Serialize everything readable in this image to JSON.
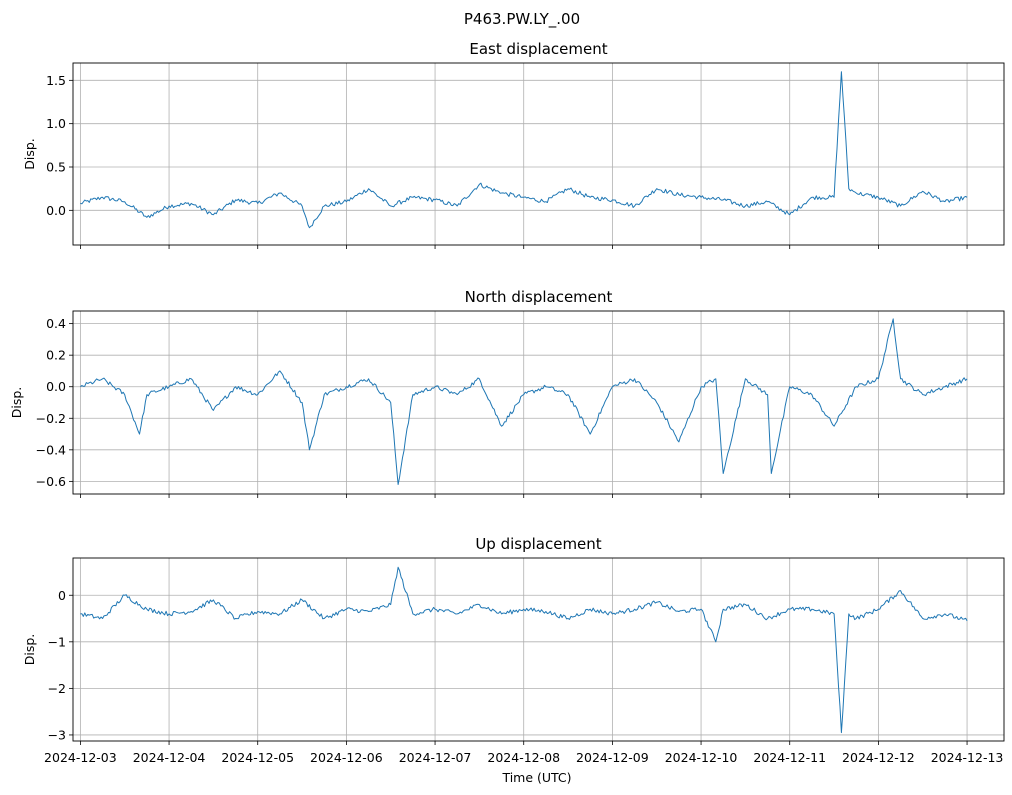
{
  "figure": {
    "suptitle": "P463.PW.LY_.00",
    "xlabel": "Time (UTC)",
    "line_color": "#1f77b4",
    "grid_color": "#b0b0b0"
  },
  "chart_data": [
    {
      "type": "line",
      "title": "East displacement",
      "ylabel": "Disp.",
      "xlabel": "",
      "xlim": [
        "2024-12-02T22:00",
        "2024-12-13T10:00"
      ],
      "ylim": [
        -0.4,
        1.7
      ],
      "yticks": [
        0.0,
        0.5,
        1.0,
        1.5
      ],
      "ytick_labels": [
        "0.0",
        "0.5",
        "1.0",
        "1.5"
      ],
      "grid": true,
      "show_xticklabels": false,
      "series": [
        {
          "x": [
            "2024-12-03T00:00",
            "2024-12-03T06:00",
            "2024-12-03T12:00",
            "2024-12-03T18:00",
            "2024-12-04T00:00",
            "2024-12-04T06:00",
            "2024-12-04T12:00",
            "2024-12-04T18:00",
            "2024-12-05T00:00",
            "2024-12-05T06:00",
            "2024-12-05T12:00",
            "2024-12-05T14:00",
            "2024-12-05T18:00",
            "2024-12-06T00:00",
            "2024-12-06T06:00",
            "2024-12-06T12:00",
            "2024-12-06T18:00",
            "2024-12-07T00:00",
            "2024-12-07T06:00",
            "2024-12-07T12:00",
            "2024-12-07T18:00",
            "2024-12-08T00:00",
            "2024-12-08T06:00",
            "2024-12-08T12:00",
            "2024-12-08T18:00",
            "2024-12-09T00:00",
            "2024-12-09T06:00",
            "2024-12-09T12:00",
            "2024-12-09T18:00",
            "2024-12-10T00:00",
            "2024-12-10T06:00",
            "2024-12-10T12:00",
            "2024-12-10T18:00",
            "2024-12-11T00:00",
            "2024-12-11T06:00",
            "2024-12-11T12:00",
            "2024-12-11T14:00",
            "2024-12-11T16:00",
            "2024-12-11T18:00",
            "2024-12-12T00:00",
            "2024-12-12T06:00",
            "2024-12-12T12:00",
            "2024-12-12T18:00",
            "2024-12-13T00:00"
          ],
          "y": [
            0.08,
            0.15,
            0.1,
            -0.08,
            0.05,
            0.08,
            -0.05,
            0.12,
            0.08,
            0.2,
            0.05,
            -0.2,
            0.05,
            0.1,
            0.25,
            0.05,
            0.15,
            0.12,
            0.05,
            0.3,
            0.2,
            0.15,
            0.1,
            0.25,
            0.15,
            0.12,
            0.05,
            0.25,
            0.18,
            0.15,
            0.12,
            0.05,
            0.1,
            -0.05,
            0.15,
            0.15,
            1.6,
            0.25,
            0.2,
            0.15,
            0.05,
            0.22,
            0.1,
            0.15
          ]
        }
      ]
    },
    {
      "type": "line",
      "title": "North displacement",
      "ylabel": "Disp.",
      "xlabel": "",
      "xlim": [
        "2024-12-02T22:00",
        "2024-12-13T10:00"
      ],
      "ylim": [
        -0.68,
        0.48
      ],
      "yticks": [
        -0.6,
        -0.4,
        -0.2,
        0.0,
        0.2,
        0.4
      ],
      "ytick_labels": [
        "−0.6",
        "−0.4",
        "−0.2",
        "0.0",
        "0.2",
        "0.4"
      ],
      "grid": true,
      "show_xticklabels": false,
      "series": [
        {
          "x": [
            "2024-12-03T00:00",
            "2024-12-03T06:00",
            "2024-12-03T12:00",
            "2024-12-03T16:00",
            "2024-12-03T18:00",
            "2024-12-04T00:00",
            "2024-12-04T06:00",
            "2024-12-04T12:00",
            "2024-12-04T18:00",
            "2024-12-05T00:00",
            "2024-12-05T06:00",
            "2024-12-05T12:00",
            "2024-12-05T14:00",
            "2024-12-05T18:00",
            "2024-12-06T00:00",
            "2024-12-06T06:00",
            "2024-12-06T12:00",
            "2024-12-06T14:00",
            "2024-12-06T18:00",
            "2024-12-07T00:00",
            "2024-12-07T06:00",
            "2024-12-07T12:00",
            "2024-12-07T18:00",
            "2024-12-08T00:00",
            "2024-12-08T06:00",
            "2024-12-08T12:00",
            "2024-12-08T18:00",
            "2024-12-09T00:00",
            "2024-12-09T06:00",
            "2024-12-09T12:00",
            "2024-12-09T18:00",
            "2024-12-10T00:00",
            "2024-12-10T04:00",
            "2024-12-10T06:00",
            "2024-12-10T12:00",
            "2024-12-10T18:00",
            "2024-12-10T19:00",
            "2024-12-11T00:00",
            "2024-12-11T06:00",
            "2024-12-11T12:00",
            "2024-12-11T18:00",
            "2024-12-12T00:00",
            "2024-12-12T04:00",
            "2024-12-12T06:00",
            "2024-12-12T12:00",
            "2024-12-12T18:00",
            "2024-12-13T00:00"
          ],
          "y": [
            0.0,
            0.05,
            -0.05,
            -0.3,
            -0.05,
            0.0,
            0.05,
            -0.15,
            0.0,
            -0.05,
            0.1,
            -0.1,
            -0.4,
            -0.05,
            0.0,
            0.05,
            -0.1,
            -0.62,
            -0.05,
            0.0,
            -0.05,
            0.05,
            -0.25,
            -0.05,
            0.0,
            -0.05,
            -0.3,
            0.0,
            0.05,
            -0.1,
            -0.35,
            0.0,
            0.05,
            -0.55,
            0.05,
            -0.05,
            -0.55,
            0.0,
            -0.05,
            -0.25,
            0.0,
            0.05,
            0.43,
            0.05,
            -0.05,
            0.0,
            0.05
          ]
        }
      ]
    },
    {
      "type": "line",
      "title": "Up displacement",
      "ylabel": "Disp.",
      "xlabel": "Time (UTC)",
      "xlim": [
        "2024-12-02T22:00",
        "2024-12-13T10:00"
      ],
      "ylim": [
        -3.13,
        0.8
      ],
      "yticks": [
        -3,
        -2,
        -1,
        0
      ],
      "ytick_labels": [
        "−3",
        "−2",
        "−1",
        "0"
      ],
      "grid": true,
      "show_xticklabels": true,
      "xticks": [
        "2024-12-03",
        "2024-12-04",
        "2024-12-05",
        "2024-12-06",
        "2024-12-07",
        "2024-12-08",
        "2024-12-09",
        "2024-12-10",
        "2024-12-11",
        "2024-12-12",
        "2024-12-13"
      ],
      "series": [
        {
          "x": [
            "2024-12-03T00:00",
            "2024-12-03T06:00",
            "2024-12-03T12:00",
            "2024-12-03T18:00",
            "2024-12-04T00:00",
            "2024-12-04T06:00",
            "2024-12-04T12:00",
            "2024-12-04T18:00",
            "2024-12-05T00:00",
            "2024-12-05T06:00",
            "2024-12-05T12:00",
            "2024-12-05T18:00",
            "2024-12-06T00:00",
            "2024-12-06T06:00",
            "2024-12-06T12:00",
            "2024-12-06T14:00",
            "2024-12-06T18:00",
            "2024-12-07T00:00",
            "2024-12-07T06:00",
            "2024-12-07T12:00",
            "2024-12-07T18:00",
            "2024-12-08T00:00",
            "2024-12-08T06:00",
            "2024-12-08T12:00",
            "2024-12-08T18:00",
            "2024-12-09T00:00",
            "2024-12-09T06:00",
            "2024-12-09T12:00",
            "2024-12-09T18:00",
            "2024-12-10T00:00",
            "2024-12-10T04:00",
            "2024-12-10T06:00",
            "2024-12-10T12:00",
            "2024-12-10T18:00",
            "2024-12-11T00:00",
            "2024-12-11T06:00",
            "2024-12-11T12:00",
            "2024-12-11T14:00",
            "2024-12-11T16:00",
            "2024-12-11T18:00",
            "2024-12-12T00:00",
            "2024-12-12T06:00",
            "2024-12-12T12:00",
            "2024-12-12T18:00",
            "2024-12-13T00:00"
          ],
          "y": [
            -0.4,
            -0.5,
            0.0,
            -0.3,
            -0.4,
            -0.35,
            -0.1,
            -0.5,
            -0.35,
            -0.4,
            -0.1,
            -0.5,
            -0.3,
            -0.35,
            -0.2,
            0.6,
            -0.4,
            -0.3,
            -0.4,
            -0.2,
            -0.4,
            -0.3,
            -0.35,
            -0.5,
            -0.3,
            -0.4,
            -0.3,
            -0.15,
            -0.35,
            -0.3,
            -1.0,
            -0.3,
            -0.2,
            -0.5,
            -0.3,
            -0.3,
            -0.4,
            -2.95,
            -0.4,
            -0.5,
            -0.3,
            0.1,
            -0.5,
            -0.4,
            -0.55
          ]
        }
      ]
    }
  ]
}
